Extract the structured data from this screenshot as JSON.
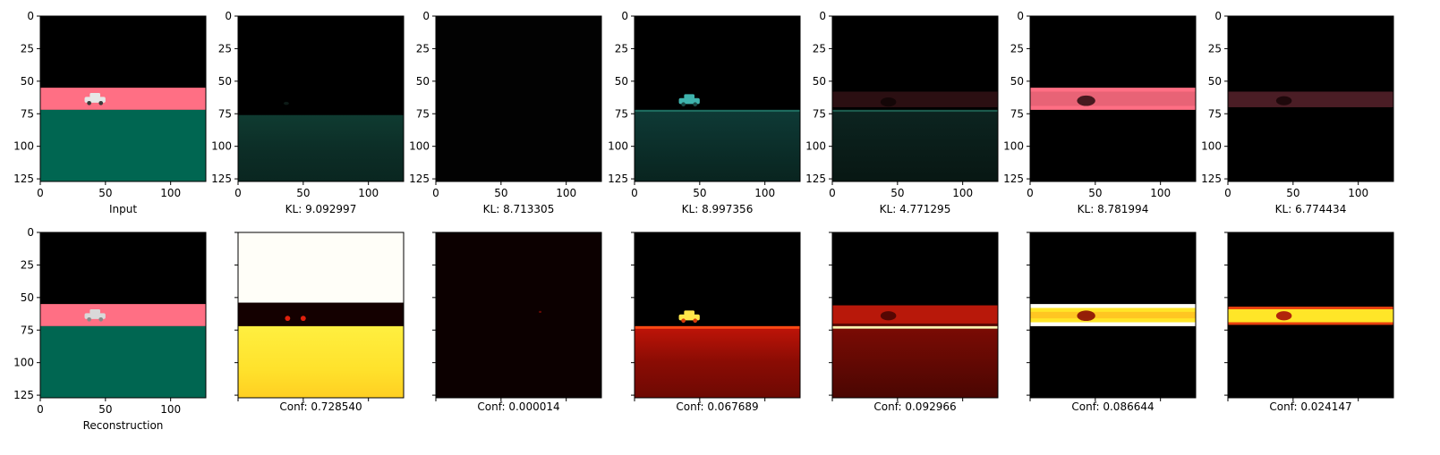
{
  "figure": {
    "panel_count": 7,
    "image_range": [
      0,
      127
    ],
    "x_tick_labels": [
      "0",
      "50",
      "100"
    ],
    "y_tick_labels": [
      "0",
      "25",
      "50",
      "75",
      "100",
      "125"
    ]
  },
  "scene_colors": {
    "background": "#000000",
    "road": "#ff6f84",
    "ground": "#006651",
    "car": "#e6e6e6",
    "teal_glow": "#1e8f77",
    "mask_pink": "#ff6f84",
    "heat_low": "#2a0000",
    "heat_mid": "#e0200c",
    "heat_high": "#ffe628",
    "heat_max": "#fffef8"
  },
  "top_row": {
    "captions": [
      "Input",
      "KL: 9.092997",
      "KL: 8.713305",
      "KL: 8.997356",
      "KL: 4.771295",
      "KL: 8.781994",
      "KL: 6.774434"
    ]
  },
  "bottom_row": {
    "captions": [
      "Reconstruction",
      "Conf: 0.728540",
      "Conf: 0.000014",
      "Conf: 0.067689",
      "Conf: 0.092966",
      "Conf: 0.086644",
      "Conf: 0.024147"
    ]
  },
  "chart_data": {
    "type": "heatmap",
    "title": "",
    "xlabel": "",
    "ylabel": "",
    "xlim": [
      0,
      127
    ],
    "ylim": [
      127,
      0
    ],
    "top_row": [
      {
        "caption": "Input"
      },
      {
        "caption": "KL: 9.092997",
        "kl": 9.092997
      },
      {
        "caption": "KL: 8.713305",
        "kl": 8.713305
      },
      {
        "caption": "KL: 8.997356",
        "kl": 8.997356
      },
      {
        "caption": "KL: 4.771295",
        "kl": 4.771295
      },
      {
        "caption": "KL: 8.781994",
        "kl": 8.781994
      },
      {
        "caption": "KL: 6.774434",
        "kl": 6.774434
      }
    ],
    "bottom_row": [
      {
        "caption": "Reconstruction"
      },
      {
        "caption": "Conf: 0.728540",
        "conf": 0.72854
      },
      {
        "caption": "Conf: 0.000014",
        "conf": 1.4e-05
      },
      {
        "caption": "Conf: 0.067689",
        "conf": 0.067689
      },
      {
        "caption": "Conf: 0.092966",
        "conf": 0.092966
      },
      {
        "caption": "Conf: 0.086644",
        "conf": 0.086644
      },
      {
        "caption": "Conf: 0.024147",
        "conf": 0.024147
      }
    ]
  }
}
